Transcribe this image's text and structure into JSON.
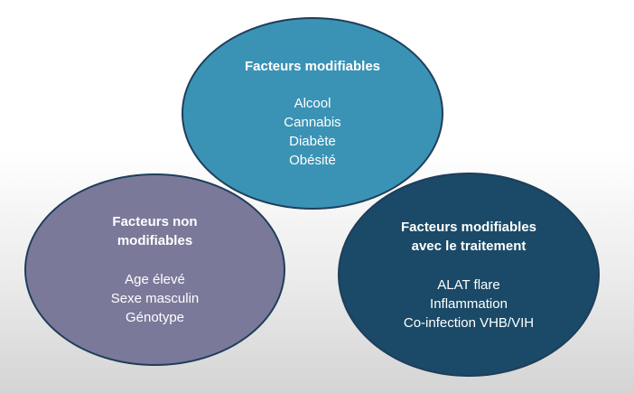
{
  "circles": {
    "top": {
      "title": "Facteurs modifiables",
      "items": [
        "Alcool",
        "Cannabis",
        "Diabète",
        "Obésité"
      ]
    },
    "left": {
      "title_line1": "Facteurs non",
      "title_line2": "modifiables",
      "items": [
        "Age élevé",
        "Sexe masculin",
        "Génotype"
      ]
    },
    "right": {
      "title_line1": "Facteurs modifiables",
      "title_line2": "avec le traitement",
      "items": [
        "ALAT flare",
        "Inflammation",
        "Co-infection VHB/VIH"
      ]
    }
  },
  "colors": {
    "top_fill": "#3a93b5",
    "left_fill": "#7b799a",
    "right_fill": "#1a4a67",
    "outline": "#1f3e5a",
    "text": "#ffffff"
  }
}
